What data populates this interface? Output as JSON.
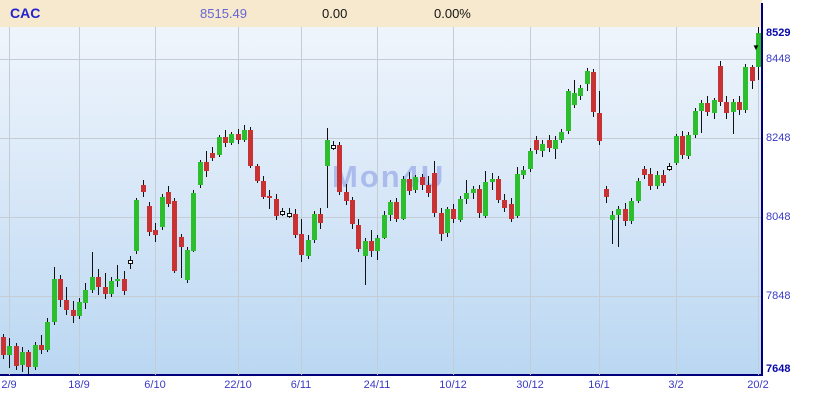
{
  "header": {
    "symbol": "CAC",
    "last": "8515.49",
    "change": "0.00",
    "change_pct": "0.00%"
  },
  "watermark": "Mon4U",
  "colors": {
    "header_bg": "#F7E9CE",
    "symbol_text": "#2222CF",
    "last_text": "#6666D4",
    "axis_line": "#00007D",
    "grid_line": "#C6CCD4",
    "label_text": "#3A3AC6",
    "label_text_bold": "#0808A8",
    "candle_up": "#2DBE2D",
    "candle_down": "#C93232",
    "candle_doji_fill": "#FFFFFF",
    "wick": "#111111",
    "plot_bg_top": "#EFF5FC",
    "plot_bg_bottom": "#BAD7F2"
  },
  "chart_data": {
    "type": "candlestick",
    "title": "CAC daily candlestick chart",
    "ylim": [
      7648,
      8529
    ],
    "grid": true,
    "y_ticks": [
      {
        "label": "8529",
        "price": 8529,
        "bold": true,
        "grid": false
      },
      {
        "label": "8448",
        "price": 8448,
        "bold": false,
        "grid": true
      },
      {
        "label": "8248",
        "price": 8248,
        "bold": false,
        "grid": true
      },
      {
        "label": "8048",
        "price": 8048,
        "bold": false,
        "grid": true
      },
      {
        "label": "7848",
        "price": 7848,
        "bold": false,
        "grid": true
      },
      {
        "label": "7648",
        "price": 7648,
        "bold": true,
        "grid": false
      }
    ],
    "x_ticks": [
      {
        "label": "2/9",
        "index": 1
      },
      {
        "label": "18/9",
        "index": 12
      },
      {
        "label": "6/10",
        "index": 24
      },
      {
        "label": "22/10",
        "index": 37
      },
      {
        "label": "6/11",
        "index": 47
      },
      {
        "label": "24/11",
        "index": 59
      },
      {
        "label": "10/12",
        "index": 71
      },
      {
        "label": "30/12",
        "index": 83
      },
      {
        "label": "16/1",
        "index": 94
      },
      {
        "label": "3/2",
        "index": 106
      },
      {
        "label": "20/2",
        "index": 119
      }
    ],
    "candles": [
      [
        7745,
        7752,
        7688,
        7700
      ],
      [
        7700,
        7742,
        7665,
        7722
      ],
      [
        7722,
        7728,
        7660,
        7672
      ],
      [
        7672,
        7718,
        7655,
        7706
      ],
      [
        7706,
        7712,
        7650,
        7668
      ],
      [
        7668,
        7732,
        7660,
        7724
      ],
      [
        7724,
        7748,
        7700,
        7712
      ],
      [
        7712,
        7792,
        7705,
        7782
      ],
      [
        7782,
        7922,
        7775,
        7892
      ],
      [
        7892,
        7902,
        7820,
        7838
      ],
      [
        7838,
        7872,
        7800,
        7812
      ],
      [
        7812,
        7836,
        7780,
        7796
      ],
      [
        7796,
        7842,
        7790,
        7832
      ],
      [
        7832,
        7882,
        7815,
        7864
      ],
      [
        7864,
        7960,
        7855,
        7896
      ],
      [
        7896,
        7916,
        7850,
        7870
      ],
      [
        7870,
        7906,
        7840,
        7852
      ],
      [
        7852,
        7896,
        7845,
        7886
      ],
      [
        7886,
        7926,
        7870,
        7892
      ],
      [
        7892,
        7912,
        7850,
        7862
      ],
      [
        7935,
        7948,
        7915,
        7940,
        "w"
      ],
      [
        7962,
        8096,
        7955,
        8090
      ],
      [
        8130,
        8142,
        8100,
        8112
      ],
      [
        8076,
        8086,
        8000,
        8010
      ],
      [
        8016,
        8032,
        7984,
        8004
      ],
      [
        8022,
        8106,
        8014,
        8098
      ],
      [
        8112,
        8126,
        8074,
        8082
      ],
      [
        8088,
        8096,
        7906,
        7912
      ],
      [
        7998,
        8006,
        7894,
        7972
      ],
      [
        7889,
        7972,
        7880,
        7964
      ],
      [
        7964,
        8116,
        7958,
        8110
      ],
      [
        8128,
        8192,
        8120,
        8186
      ],
      [
        8186,
        8216,
        8150,
        8162
      ],
      [
        8210,
        8226,
        8190,
        8198
      ],
      [
        8205,
        8256,
        8200,
        8250
      ],
      [
        8250,
        8268,
        8224,
        8235
      ],
      [
        8235,
        8262,
        8228,
        8258
      ],
      [
        8258,
        8272,
        8234,
        8242
      ],
      [
        8242,
        8282,
        8238,
        8268
      ],
      [
        8268,
        8276,
        8172,
        8178
      ],
      [
        8178,
        8182,
        8134,
        8140
      ],
      [
        8140,
        8152,
        8094,
        8100
      ],
      [
        8100,
        8116,
        8068,
        8094
      ],
      [
        8094,
        8106,
        8040,
        8050
      ],
      [
        8060,
        8070,
        8050,
        8064,
        "w"
      ],
      [
        8058,
        8072,
        8046,
        8056,
        "w"
      ],
      [
        8056,
        8068,
        7994,
        8004
      ],
      [
        8004,
        8042,
        7934,
        7950
      ],
      [
        7950,
        8002,
        7940,
        7990
      ],
      [
        7990,
        8064,
        7984,
        8056
      ],
      [
        8056,
        8072,
        8018,
        8034
      ],
      [
        8178,
        8274,
        8072,
        8244
      ],
      [
        8226,
        8240,
        8216,
        8230,
        "w"
      ],
      [
        8230,
        8238,
        8104,
        8112
      ],
      [
        8112,
        8132,
        8078,
        8090
      ],
      [
        8090,
        8098,
        8018,
        8028
      ],
      [
        8028,
        8042,
        7958,
        7968
      ],
      [
        7950,
        7996,
        7876,
        7988
      ],
      [
        7988,
        8016,
        7948,
        7962
      ],
      [
        7962,
        8002,
        7938,
        7996
      ],
      [
        7996,
        8062,
        7990,
        8054
      ],
      [
        8054,
        8092,
        8040,
        8086
      ],
      [
        8086,
        8096,
        8034,
        8044
      ],
      [
        8044,
        8152,
        8040,
        8144
      ],
      [
        8144,
        8162,
        8104,
        8114
      ],
      [
        8114,
        8154,
        8108,
        8148
      ],
      [
        8148,
        8158,
        8118,
        8128
      ],
      [
        8128,
        8152,
        8098,
        8108
      ],
      [
        8160,
        8190,
        8048,
        8058
      ],
      [
        8058,
        8072,
        7988,
        8006
      ],
      [
        8006,
        8074,
        7998,
        8068
      ],
      [
        8068,
        8082,
        8034,
        8042
      ],
      [
        8042,
        8102,
        8036,
        8094
      ],
      [
        8094,
        8142,
        8082,
        8108
      ],
      [
        8108,
        8126,
        8094,
        8118
      ],
      [
        8118,
        8130,
        8046,
        8056
      ],
      [
        8050,
        8164,
        8044,
        8136
      ],
      [
        8136,
        8160,
        8118,
        8144
      ],
      [
        8144,
        8152,
        8084,
        8092
      ],
      [
        8092,
        8106,
        8060,
        8072
      ],
      [
        8082,
        8096,
        8034,
        8044
      ],
      [
        8050,
        8174,
        8044,
        8156
      ],
      [
        8156,
        8178,
        8146,
        8168
      ],
      [
        8168,
        8222,
        8160,
        8214
      ],
      [
        8242,
        8252,
        8206,
        8216
      ],
      [
        8216,
        8242,
        8200,
        8234
      ],
      [
        8242,
        8256,
        8214,
        8222
      ],
      [
        8222,
        8252,
        8194,
        8244
      ],
      [
        8244,
        8270,
        8234,
        8264
      ],
      [
        8266,
        8372,
        8258,
        8366
      ],
      [
        8332,
        8396,
        8326,
        8362
      ],
      [
        8355,
        8382,
        8344,
        8374
      ],
      [
        8386,
        8426,
        8368,
        8418
      ],
      [
        8414,
        8422,
        8300,
        8312
      ],
      [
        8312,
        8366,
        8230,
        8242
      ],
      [
        8118,
        8126,
        8084,
        8098
      ],
      [
        8040,
        8062,
        7978,
        8052
      ],
      [
        8052,
        8076,
        7972,
        8068
      ],
      [
        8068,
        8084,
        8026,
        8038
      ],
      [
        8038,
        8096,
        8030,
        8088
      ],
      [
        8088,
        8146,
        8082,
        8138
      ],
      [
        8170,
        8178,
        8146,
        8156
      ],
      [
        8156,
        8172,
        8116,
        8126
      ],
      [
        8126,
        8164,
        8118,
        8154
      ],
      [
        8154,
        8166,
        8126,
        8134
      ],
      [
        8172,
        8184,
        8164,
        8178,
        "w"
      ],
      [
        8184,
        8258,
        8180,
        8252
      ],
      [
        8252,
        8266,
        8194,
        8204
      ],
      [
        8204,
        8264,
        8196,
        8256
      ],
      [
        8256,
        8324,
        8248,
        8316
      ],
      [
        8316,
        8344,
        8260,
        8336
      ],
      [
        8336,
        8354,
        8304,
        8312
      ],
      [
        8312,
        8350,
        8298,
        8344
      ],
      [
        8430,
        8442,
        8328,
        8340
      ],
      [
        8340,
        8354,
        8296,
        8312
      ],
      [
        8312,
        8346,
        8258,
        8338
      ],
      [
        8338,
        8354,
        8306,
        8318
      ],
      [
        8318,
        8436,
        8312,
        8428
      ],
      [
        8428,
        8434,
        8374,
        8392
      ],
      [
        8430,
        8529,
        8394,
        8515
      ]
    ]
  },
  "last_marker": "▼"
}
